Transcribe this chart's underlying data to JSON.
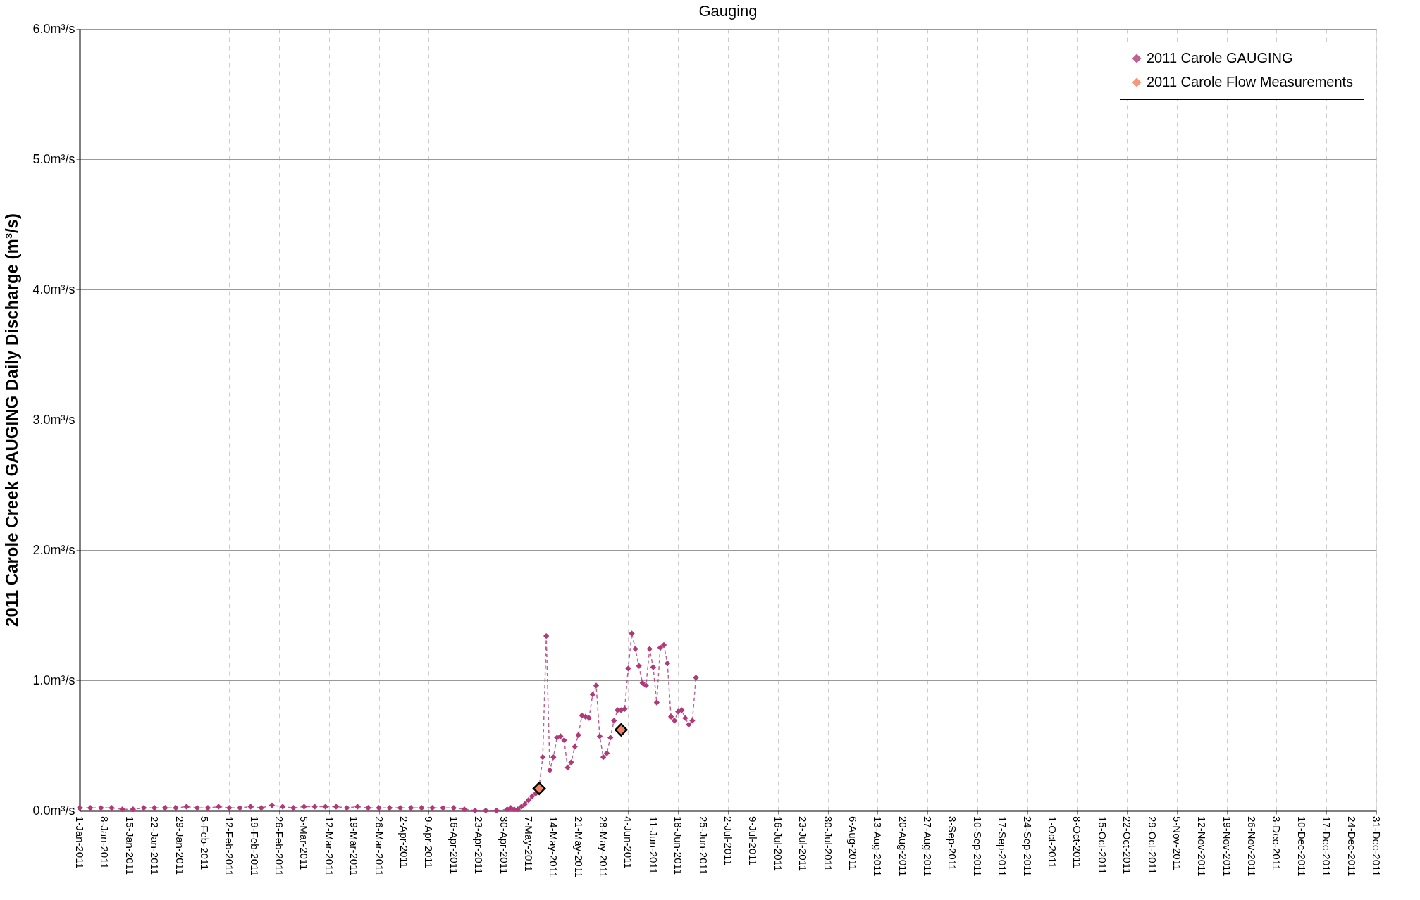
{
  "chart_data": {
    "type": "line",
    "title": "Gauging",
    "ylabel": "2011 Carole Creek GAUGING Daily Discharge (m³/s)",
    "xlim": [
      "2011-01-01",
      "2011-12-31"
    ],
    "xticks": [
      {
        "value": "2011-01-01",
        "label": "1-Jan-2011"
      },
      {
        "value": "2011-01-08",
        "label": "8-Jan-2011"
      },
      {
        "value": "2011-01-15",
        "label": "15-Jan-2011"
      },
      {
        "value": "2011-01-22",
        "label": "22-Jan-2011"
      },
      {
        "value": "2011-01-29",
        "label": "29-Jan-2011"
      },
      {
        "value": "2011-02-05",
        "label": "5-Feb-2011"
      },
      {
        "value": "2011-02-12",
        "label": "12-Feb-2011"
      },
      {
        "value": "2011-02-19",
        "label": "19-Feb-2011"
      },
      {
        "value": "2011-02-26",
        "label": "26-Feb-2011"
      },
      {
        "value": "2011-03-05",
        "label": "5-Mar-2011"
      },
      {
        "value": "2011-03-12",
        "label": "12-Mar-2011"
      },
      {
        "value": "2011-03-19",
        "label": "19-Mar-2011"
      },
      {
        "value": "2011-03-26",
        "label": "26-Mar-2011"
      },
      {
        "value": "2011-04-02",
        "label": "2-Apr-2011"
      },
      {
        "value": "2011-04-09",
        "label": "9-Apr-2011"
      },
      {
        "value": "2011-04-16",
        "label": "16-Apr-2011"
      },
      {
        "value": "2011-04-23",
        "label": "23-Apr-2011"
      },
      {
        "value": "2011-04-30",
        "label": "30-Apr-2011"
      },
      {
        "value": "2011-05-07",
        "label": "7-May-2011"
      },
      {
        "value": "2011-05-14",
        "label": "14-May-2011"
      },
      {
        "value": "2011-05-21",
        "label": "21-May-2011"
      },
      {
        "value": "2011-05-28",
        "label": "28-May-2011"
      },
      {
        "value": "2011-06-04",
        "label": "4-Jun-2011"
      },
      {
        "value": "2011-06-11",
        "label": "11-Jun-2011"
      },
      {
        "value": "2011-06-18",
        "label": "18-Jun-2011"
      },
      {
        "value": "2011-06-25",
        "label": "25-Jun-2011"
      },
      {
        "value": "2011-07-02",
        "label": "2-Jul-2011"
      },
      {
        "value": "2011-07-09",
        "label": "9-Jul-2011"
      },
      {
        "value": "2011-07-16",
        "label": "16-Jul-2011"
      },
      {
        "value": "2011-07-23",
        "label": "23-Jul-2011"
      },
      {
        "value": "2011-07-30",
        "label": "30-Jul-2011"
      },
      {
        "value": "2011-08-06",
        "label": "6-Aug-2011"
      },
      {
        "value": "2011-08-13",
        "label": "13-Aug-2011"
      },
      {
        "value": "2011-08-20",
        "label": "20-Aug-2011"
      },
      {
        "value": "2011-08-27",
        "label": "27-Aug-2011"
      },
      {
        "value": "2011-09-03",
        "label": "3-Sep-2011"
      },
      {
        "value": "2011-09-10",
        "label": "10-Sep-2011"
      },
      {
        "value": "2011-09-17",
        "label": "17-Sep-2011"
      },
      {
        "value": "2011-09-24",
        "label": "24-Sep-2011"
      },
      {
        "value": "2011-10-01",
        "label": "1-Oct-2011"
      },
      {
        "value": "2011-10-08",
        "label": "8-Oct-2011"
      },
      {
        "value": "2011-10-15",
        "label": "15-Oct-2011"
      },
      {
        "value": "2011-10-22",
        "label": "22-Oct-2011"
      },
      {
        "value": "2011-10-29",
        "label": "29-Oct-2011"
      },
      {
        "value": "2011-11-05",
        "label": "5-Nov-2011"
      },
      {
        "value": "2011-11-12",
        "label": "12-Nov-2011"
      },
      {
        "value": "2011-11-19",
        "label": "19-Nov-2011"
      },
      {
        "value": "2011-11-26",
        "label": "26-Nov-2011"
      },
      {
        "value": "2011-12-03",
        "label": "3-Dec-2011"
      },
      {
        "value": "2011-12-10",
        "label": "10-Dec-2011"
      },
      {
        "value": "2011-12-17",
        "label": "17-Dec-2011"
      },
      {
        "value": "2011-12-24",
        "label": "24-Dec-2011"
      },
      {
        "value": "2011-12-31",
        "label": "31-Dec-2011"
      }
    ],
    "ylim": [
      0,
      6
    ],
    "yticks": [
      {
        "value": 0,
        "label": "0.0m³/s"
      },
      {
        "value": 1,
        "label": "1.0m³/s"
      },
      {
        "value": 2,
        "label": "2.0m³/s"
      },
      {
        "value": 3,
        "label": "3.0m³/s"
      },
      {
        "value": 4,
        "label": "4.0m³/s"
      },
      {
        "value": 5,
        "label": "5.0m³/s"
      },
      {
        "value": 6,
        "label": "6.0m³/s"
      }
    ],
    "grid": true,
    "legend": "top right",
    "marker": "diamond",
    "line_style": "dashed",
    "series": [
      {
        "name": "2011 Carole GAUGING",
        "color": "#b03a78",
        "x": [
          "2011-01-01",
          "2011-01-04",
          "2011-01-07",
          "2011-01-10",
          "2011-01-13",
          "2011-01-16",
          "2011-01-19",
          "2011-01-22",
          "2011-01-25",
          "2011-01-28",
          "2011-01-31",
          "2011-02-03",
          "2011-02-06",
          "2011-02-09",
          "2011-02-12",
          "2011-02-15",
          "2011-02-18",
          "2011-02-21",
          "2011-02-24",
          "2011-02-27",
          "2011-03-02",
          "2011-03-05",
          "2011-03-08",
          "2011-03-11",
          "2011-03-14",
          "2011-03-17",
          "2011-03-20",
          "2011-03-23",
          "2011-03-26",
          "2011-03-29",
          "2011-04-01",
          "2011-04-04",
          "2011-04-07",
          "2011-04-10",
          "2011-04-13",
          "2011-04-16",
          "2011-04-19",
          "2011-04-22",
          "2011-04-25",
          "2011-04-28",
          "2011-05-01",
          "2011-05-02",
          "2011-05-03",
          "2011-05-04",
          "2011-05-05",
          "2011-05-06",
          "2011-05-07",
          "2011-05-08",
          "2011-05-09",
          "2011-05-10",
          "2011-05-11",
          "2011-05-12",
          "2011-05-13",
          "2011-05-14",
          "2011-05-15",
          "2011-05-16",
          "2011-05-17",
          "2011-05-18",
          "2011-05-19",
          "2011-05-20",
          "2011-05-21",
          "2011-05-22",
          "2011-05-23",
          "2011-05-24",
          "2011-05-25",
          "2011-05-26",
          "2011-05-27",
          "2011-05-28",
          "2011-05-29",
          "2011-05-30",
          "2011-05-31",
          "2011-06-01",
          "2011-06-02",
          "2011-06-03",
          "2011-06-04",
          "2011-06-05",
          "2011-06-06",
          "2011-06-07",
          "2011-06-08",
          "2011-06-09",
          "2011-06-10",
          "2011-06-11",
          "2011-06-12",
          "2011-06-13",
          "2011-06-14",
          "2011-06-15",
          "2011-06-16",
          "2011-06-17",
          "2011-06-18",
          "2011-06-19",
          "2011-06-20",
          "2011-06-21",
          "2011-06-22",
          "2011-06-23"
        ],
        "values": [
          0.02,
          0.02,
          0.02,
          0.02,
          0.01,
          0.01,
          0.02,
          0.02,
          0.02,
          0.02,
          0.03,
          0.02,
          0.02,
          0.03,
          0.02,
          0.02,
          0.03,
          0.02,
          0.04,
          0.03,
          0.02,
          0.03,
          0.03,
          0.03,
          0.03,
          0.02,
          0.03,
          0.02,
          0.02,
          0.02,
          0.02,
          0.02,
          0.02,
          0.02,
          0.02,
          0.02,
          0.01,
          0.0,
          0.0,
          0.0,
          0.01,
          0.02,
          0.01,
          0.01,
          0.03,
          0.05,
          0.08,
          0.11,
          0.13,
          0.18,
          0.41,
          1.34,
          0.31,
          0.41,
          0.56,
          0.57,
          0.54,
          0.33,
          0.37,
          0.49,
          0.58,
          0.73,
          0.72,
          0.71,
          0.89,
          0.96,
          0.57,
          0.41,
          0.44,
          0.56,
          0.69,
          0.77,
          0.77,
          0.78,
          1.09,
          1.36,
          1.24,
          1.11,
          0.98,
          0.96,
          1.24,
          1.1,
          0.83,
          1.25,
          1.27,
          1.13,
          0.72,
          0.69,
          0.76,
          0.77,
          0.71,
          0.66,
          0.69,
          1.02
        ]
      },
      {
        "name": "2011 Carole Flow Measurements",
        "color": "#f08060",
        "type": "scatter",
        "x": [
          "2011-05-10",
          "2011-06-02"
        ],
        "values": [
          0.17,
          0.62
        ]
      }
    ]
  }
}
